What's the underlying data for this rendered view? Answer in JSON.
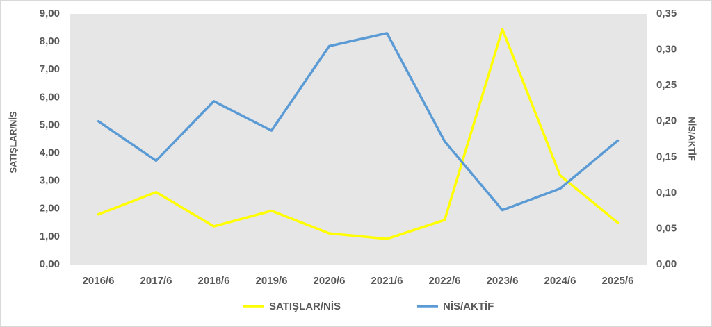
{
  "chart_data": {
    "type": "line",
    "categories": [
      "2016/6",
      "2017/6",
      "2018/6",
      "2019/6",
      "2020/6",
      "2021/6",
      "2022/6",
      "2023/6",
      "2024/6",
      "2025/6"
    ],
    "ylabel": "SATIŞLAR/NİS",
    "y2label": "NİS/AKTİF",
    "ylim": [
      0,
      9
    ],
    "yticks": [
      {
        "value": 0,
        "label": "0,00"
      },
      {
        "value": 1,
        "label": "1,00"
      },
      {
        "value": 2,
        "label": "2,00"
      },
      {
        "value": 3,
        "label": "3,00"
      },
      {
        "value": 4,
        "label": "4,00"
      },
      {
        "value": 5,
        "label": "5,00"
      },
      {
        "value": 6,
        "label": "6,00"
      },
      {
        "value": 7,
        "label": "7,00"
      },
      {
        "value": 8,
        "label": "8,00"
      },
      {
        "value": 9,
        "label": "9,00"
      }
    ],
    "y2lim": [
      0,
      0.35
    ],
    "y2ticks": [
      {
        "value": 0,
        "label": "0,00"
      },
      {
        "value": 0.05,
        "label": "0,05"
      },
      {
        "value": 0.1,
        "label": "0,10"
      },
      {
        "value": 0.15,
        "label": "0,15"
      },
      {
        "value": 0.2,
        "label": "0,20"
      },
      {
        "value": 0.25,
        "label": "0,25"
      },
      {
        "value": 0.3,
        "label": "0,30"
      },
      {
        "value": 0.35,
        "label": "0,35"
      }
    ],
    "legend": "bottom",
    "series": [
      {
        "name": "SATIŞLAR/NİS",
        "color": "#ffff00",
        "values": [
          1.8,
          2.6,
          1.37,
          1.93,
          1.12,
          0.92,
          1.6,
          8.45,
          3.2,
          1.5
        ]
      },
      {
        "name": "NİS/AKTİF",
        "color": "#5b9bd5",
        "axis": "y2",
        "values": [
          0.2,
          0.145,
          0.228,
          0.187,
          0.305,
          0.323,
          0.172,
          0.076,
          0.106,
          0.173
        ]
      }
    ]
  }
}
